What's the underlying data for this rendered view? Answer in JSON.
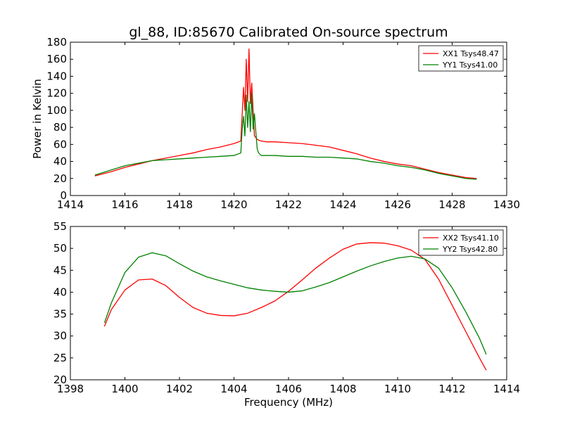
{
  "colors": {
    "xx": "#ff0000",
    "yy": "#008000"
  },
  "chart_data": [
    {
      "type": "line",
      "title": "gl_88, ID:85670 Calibrated On-source spectrum",
      "xlabel": "",
      "ylabel": "Power in Kelvin",
      "xlim": [
        1414,
        1430
      ],
      "ylim": [
        0,
        180
      ],
      "xticks": [
        1414,
        1416,
        1418,
        1420,
        1422,
        1424,
        1426,
        1428,
        1430
      ],
      "yticks": [
        0,
        20,
        40,
        60,
        80,
        100,
        120,
        140,
        160,
        180
      ],
      "grid": false,
      "legend": "top-right",
      "series": [
        {
          "name": "XX1 Tsys48.47",
          "color": "#ff0000",
          "x": [
            1414.9,
            1415.5,
            1416.0,
            1416.5,
            1417.0,
            1417.5,
            1418.0,
            1418.5,
            1419.0,
            1419.5,
            1420.0,
            1420.25,
            1420.3,
            1420.35,
            1420.4,
            1420.45,
            1420.5,
            1420.55,
            1420.6,
            1420.65,
            1420.7,
            1420.75,
            1420.8,
            1420.85,
            1420.9,
            1421.0,
            1421.2,
            1421.5,
            1422.0,
            1422.5,
            1423.0,
            1423.5,
            1424.0,
            1424.5,
            1425.0,
            1425.5,
            1426.0,
            1426.5,
            1427.0,
            1427.5,
            1428.0,
            1428.5,
            1428.9
          ],
          "y": [
            23,
            28,
            33,
            37,
            41,
            44,
            47,
            50,
            54,
            57,
            61,
            64,
            95,
            127,
            100,
            160,
            110,
            172,
            108,
            132,
            100,
            70,
            68,
            66,
            65,
            64,
            63,
            63,
            62,
            61,
            59,
            57,
            53,
            49,
            44,
            40,
            37,
            35,
            31,
            27,
            24,
            21,
            20
          ]
        },
        {
          "name": "YY1 Tsys41.00",
          "color": "#008000",
          "x": [
            1414.9,
            1415.5,
            1416.0,
            1416.5,
            1417.0,
            1417.5,
            1418.0,
            1418.5,
            1419.0,
            1419.5,
            1420.0,
            1420.25,
            1420.3,
            1420.35,
            1420.4,
            1420.45,
            1420.5,
            1420.55,
            1420.6,
            1420.65,
            1420.7,
            1420.75,
            1420.8,
            1420.85,
            1420.9,
            1421.0,
            1421.2,
            1421.5,
            1422.0,
            1422.5,
            1423.0,
            1423.5,
            1424.0,
            1424.5,
            1425.0,
            1425.5,
            1426.0,
            1426.5,
            1427.0,
            1427.5,
            1428.0,
            1428.5,
            1428.9
          ],
          "y": [
            24,
            30,
            35,
            38,
            41,
            42,
            43,
            44,
            45,
            46,
            47,
            50,
            78,
            93,
            70,
            118,
            80,
            110,
            75,
            120,
            78,
            96,
            75,
            55,
            50,
            47,
            47,
            47,
            46,
            46,
            45,
            45,
            44,
            43,
            40,
            38,
            35,
            33,
            30,
            26,
            23,
            20,
            19
          ]
        }
      ]
    },
    {
      "type": "line",
      "title": "",
      "xlabel": "Frequency (MHz)",
      "ylabel": "",
      "xlim": [
        1398,
        1414
      ],
      "ylim": [
        20,
        55
      ],
      "xticks": [
        1398,
        1400,
        1402,
        1404,
        1406,
        1408,
        1410,
        1412,
        1414
      ],
      "yticks": [
        20,
        25,
        30,
        35,
        40,
        45,
        50,
        55
      ],
      "grid": false,
      "legend": "top-right",
      "series": [
        {
          "name": "XX2 Tsys41.10",
          "color": "#ff0000",
          "x": [
            1399.25,
            1399.5,
            1400.0,
            1400.5,
            1401.0,
            1401.5,
            1402.0,
            1402.5,
            1403.0,
            1403.5,
            1404.0,
            1404.5,
            1405.0,
            1405.5,
            1406.0,
            1406.5,
            1407.0,
            1407.5,
            1408.0,
            1408.5,
            1409.0,
            1409.5,
            1410.0,
            1410.5,
            1411.0,
            1411.5,
            1412.0,
            1412.5,
            1413.0,
            1413.25
          ],
          "y": [
            32.2,
            36.0,
            40.5,
            42.8,
            43.0,
            41.5,
            38.8,
            36.5,
            35.2,
            34.7,
            34.6,
            35.2,
            36.5,
            38.0,
            40.2,
            42.8,
            45.5,
            47.8,
            49.8,
            51.0,
            51.3,
            51.2,
            50.6,
            49.6,
            47.5,
            43.0,
            37.0,
            31.0,
            25.0,
            22.2
          ]
        },
        {
          "name": "YY2 Tsys42.80",
          "color": "#008000",
          "x": [
            1399.25,
            1399.5,
            1400.0,
            1400.5,
            1401.0,
            1401.5,
            1402.0,
            1402.5,
            1403.0,
            1403.5,
            1404.0,
            1404.5,
            1405.0,
            1405.5,
            1406.0,
            1406.5,
            1407.0,
            1407.5,
            1408.0,
            1408.5,
            1409.0,
            1409.5,
            1410.0,
            1410.5,
            1411.0,
            1411.5,
            1412.0,
            1412.5,
            1413.0,
            1413.25
          ],
          "y": [
            33.0,
            37.5,
            44.5,
            48.0,
            49.0,
            48.3,
            46.5,
            44.8,
            43.5,
            42.6,
            41.8,
            41.0,
            40.5,
            40.2,
            40.0,
            40.3,
            41.2,
            42.2,
            43.5,
            44.8,
            46.0,
            47.0,
            47.8,
            48.2,
            47.6,
            45.5,
            41.0,
            35.5,
            29.5,
            25.8
          ]
        }
      ]
    }
  ]
}
